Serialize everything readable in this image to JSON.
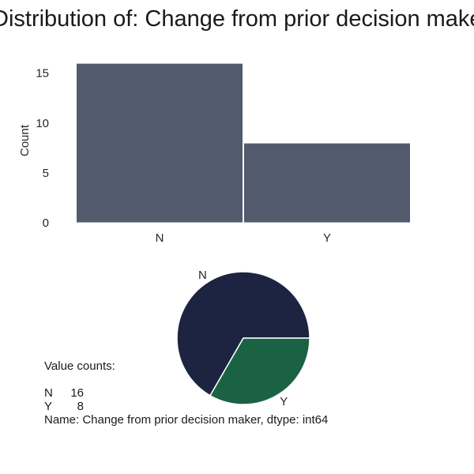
{
  "title": "Distribution of: Change from prior decision maker",
  "chart_data": [
    {
      "type": "bar",
      "categories": [
        "N",
        "Y"
      ],
      "values": [
        16,
        8
      ],
      "xlabel": "",
      "ylabel": "Count",
      "ylim": [
        0,
        16.8
      ],
      "yticks": [
        0,
        5,
        10,
        15
      ],
      "color": "#525a6e",
      "grid": false
    },
    {
      "type": "pie",
      "labels": [
        "N",
        "Y"
      ],
      "values": [
        16,
        8
      ],
      "colors": [
        "#1c2442",
        "#1b6245"
      ]
    }
  ],
  "value_counts": {
    "header": "Value counts:",
    "rows": [
      {
        "key": "N",
        "count": "16"
      },
      {
        "key": "Y",
        "count": "8"
      }
    ],
    "footer": "Name: Change from prior decision maker, dtype: int64"
  }
}
